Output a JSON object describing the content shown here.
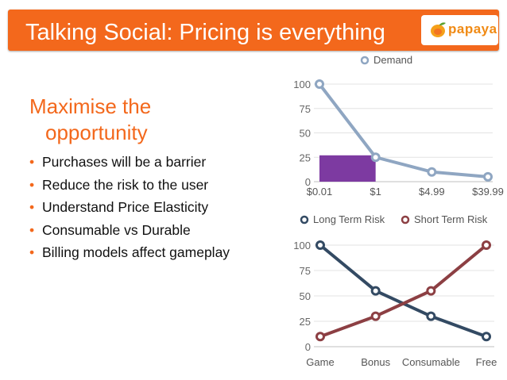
{
  "slide": {
    "title": "Talking Social: Pricing is everything",
    "logo_text": "papaya",
    "logo_icon": "papaya-fruit-icon",
    "heading_line1": "Maximise the",
    "heading_line2": "opportunity",
    "bullets": [
      "Purchases will be a barrier",
      "Reduce the risk to the user",
      "Understand Price Elasticity",
      "Consumable vs Durable",
      "Billing models affect gameplay"
    ],
    "colors": {
      "accent": "#f3681c",
      "demand": "#8fa6c2",
      "highlight": "#7d3aa1",
      "long_term": "#334a63",
      "short_term": "#8c3f43"
    }
  },
  "chart_data": [
    {
      "type": "line",
      "title": "",
      "legend": [
        "Demand"
      ],
      "legend_position": "top",
      "categories": [
        "$0.01",
        "$1",
        "$4.99",
        "$39.99"
      ],
      "series": [
        {
          "name": "Demand",
          "values": [
            100,
            25,
            10,
            5
          ]
        }
      ],
      "yticks": [
        "0",
        "25",
        "50",
        "75",
        "100"
      ],
      "ylim": [
        0,
        100
      ],
      "grid": true,
      "highlight_bar": {
        "from_category": "$0.01",
        "to_category": "$1",
        "value": 27
      }
    },
    {
      "type": "line",
      "title": "",
      "legend": [
        "Long Term Risk",
        "Short Term Risk"
      ],
      "legend_position": "top",
      "categories": [
        "Game",
        "Bonus",
        "Consumable",
        "Free"
      ],
      "series": [
        {
          "name": "Long Term Risk",
          "values": [
            100,
            55,
            30,
            10
          ]
        },
        {
          "name": "Short Term Risk",
          "values": [
            10,
            30,
            55,
            100
          ]
        }
      ],
      "yticks": [
        "0",
        "25",
        "50",
        "75",
        "100"
      ],
      "ylim": [
        0,
        100
      ],
      "grid": true
    }
  ]
}
